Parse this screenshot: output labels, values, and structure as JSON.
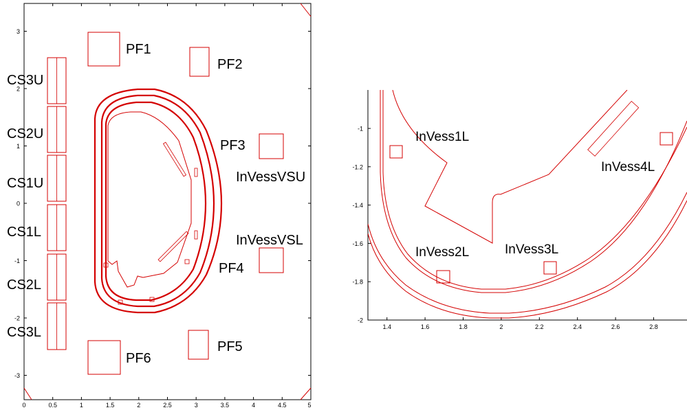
{
  "left_panel": {
    "x_ticks": [
      "0",
      "0.5",
      "1",
      "1.5",
      "2",
      "2.5",
      "3",
      "3.5",
      "4",
      "4.5",
      "5"
    ],
    "y_ticks": [
      "3",
      "2",
      "1",
      "0",
      "-1",
      "-2",
      "-3"
    ],
    "labels": {
      "pf1": "PF1",
      "pf2": "PF2",
      "pf3": "PF3",
      "pf4": "PF4",
      "pf5": "PF5",
      "pf6": "PF6",
      "cs3u": "CS3U",
      "cs2u": "CS2U",
      "cs1u": "CS1U",
      "cs1l": "CS1L",
      "cs2l": "CS2L",
      "cs3l": "CS3L",
      "invessvsu": "InVessVSU",
      "invessvsl": "InVessVSL"
    }
  },
  "right_panel": {
    "x_ticks": [
      "1.4",
      "1.6",
      "1.8",
      "2",
      "2.2",
      "2.4",
      "2.6",
      "2.8"
    ],
    "y_ticks": [
      "-1",
      "-1.2",
      "-1.4",
      "-1.6",
      "-1.8",
      "-2"
    ],
    "labels": {
      "invess1l": "InVess1L",
      "invess2l": "InVess2L",
      "invess3l": "InVess3L",
      "invess4l": "InVess4L"
    }
  },
  "colors": {
    "geometry": "#d40000",
    "axes": "#000000"
  }
}
